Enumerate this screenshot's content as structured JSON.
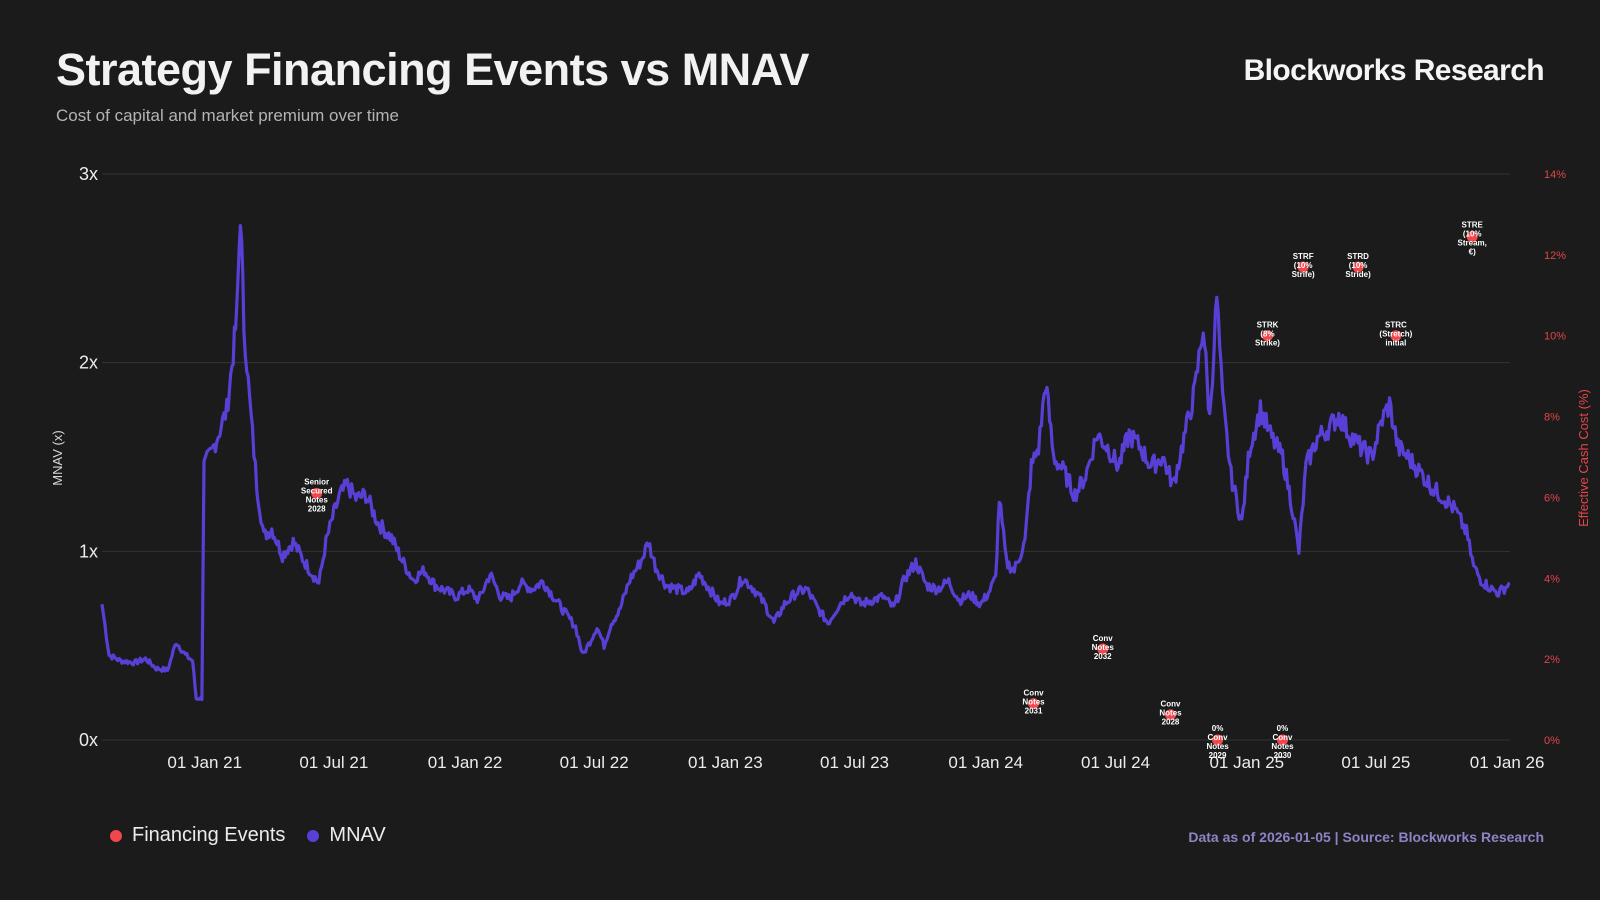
{
  "header": {
    "title": "Strategy Financing Events vs MNAV",
    "subtitle": "Cost of capital and market premium over time",
    "brand": "Blockworks Research"
  },
  "footer": {
    "source": "Data as of 2026-01-05 | Source: Blockworks Research"
  },
  "colors": {
    "background": "#1b1b1b",
    "mnav": "#5a3fd6",
    "events": "#f0474c",
    "grid": "#333333"
  },
  "chart_data": {
    "type": "line",
    "title": "Strategy Financing Events vs MNAV",
    "ylabel": "MNAV (x)",
    "y2label": "Effective Cash Cost (%)",
    "ylim": [
      0,
      3
    ],
    "y2lim": [
      0,
      14
    ],
    "xlim": [
      "2020-08-10",
      "2026-01-05"
    ],
    "y_ticks": [
      {
        "value": 0,
        "label": "0x"
      },
      {
        "value": 1,
        "label": "1x"
      },
      {
        "value": 2,
        "label": "2x"
      },
      {
        "value": 3,
        "label": "3x"
      }
    ],
    "y2_ticks": [
      {
        "value": 0,
        "label": "0%"
      },
      {
        "value": 2,
        "label": "2%"
      },
      {
        "value": 4,
        "label": "4%"
      },
      {
        "value": 6,
        "label": "6%"
      },
      {
        "value": 8,
        "label": "8%"
      },
      {
        "value": 10,
        "label": "10%"
      },
      {
        "value": 12,
        "label": "12%"
      },
      {
        "value": 14,
        "label": "14%"
      }
    ],
    "x_ticks": [
      {
        "date": "2021-01-01",
        "label": "01 Jan 21"
      },
      {
        "date": "2021-07-01",
        "label": "01 Jul 21"
      },
      {
        "date": "2022-01-01",
        "label": "01 Jan 22"
      },
      {
        "date": "2022-07-01",
        "label": "01 Jul 22"
      },
      {
        "date": "2023-01-01",
        "label": "01 Jan 23"
      },
      {
        "date": "2023-07-01",
        "label": "01 Jul 23"
      },
      {
        "date": "2024-01-01",
        "label": "01 Jan 24"
      },
      {
        "date": "2024-07-01",
        "label": "01 Jul 24"
      },
      {
        "date": "2025-01-01",
        "label": "01 Jan 25"
      },
      {
        "date": "2025-07-01",
        "label": "01 Jul 25"
      },
      {
        "date": "2026-01-01",
        "label": "01 Jan 26"
      }
    ],
    "legend": [
      {
        "name": "Financing Events",
        "color": "#f0474c"
      },
      {
        "name": "MNAV",
        "color": "#5a3fd6"
      }
    ],
    "series": [
      {
        "name": "MNAV",
        "points": [
          [
            "2020-08-10",
            0.72
          ],
          [
            "2020-08-20",
            0.45
          ],
          [
            "2020-09-05",
            0.42
          ],
          [
            "2020-09-25",
            0.41
          ],
          [
            "2020-10-10",
            0.43
          ],
          [
            "2020-10-25",
            0.38
          ],
          [
            "2020-11-10",
            0.37
          ],
          [
            "2020-11-22",
            0.52
          ],
          [
            "2020-12-05",
            0.45
          ],
          [
            "2020-12-15",
            0.42
          ],
          [
            "2020-12-20",
            0.22
          ],
          [
            "2020-12-28",
            0.22
          ],
          [
            "2020-12-31",
            1.45
          ],
          [
            "2021-01-10",
            1.52
          ],
          [
            "2021-01-20",
            1.62
          ],
          [
            "2021-02-01",
            1.75
          ],
          [
            "2021-02-10",
            2.05
          ],
          [
            "2021-02-15",
            2.25
          ],
          [
            "2021-02-20",
            2.8
          ],
          [
            "2021-02-25",
            2.2
          ],
          [
            "2021-03-05",
            1.8
          ],
          [
            "2021-03-15",
            1.35
          ],
          [
            "2021-03-25",
            1.08
          ],
          [
            "2021-04-05",
            1.12
          ],
          [
            "2021-04-20",
            0.98
          ],
          [
            "2021-05-05",
            1.05
          ],
          [
            "2021-05-20",
            0.95
          ],
          [
            "2021-06-01",
            0.88
          ],
          [
            "2021-06-10",
            0.83
          ],
          [
            "2021-06-20",
            1.05
          ],
          [
            "2021-07-01",
            1.2
          ],
          [
            "2021-07-10",
            1.3
          ],
          [
            "2021-07-20",
            1.35
          ],
          [
            "2021-08-01",
            1.28
          ],
          [
            "2021-08-15",
            1.3
          ],
          [
            "2021-09-01",
            1.15
          ],
          [
            "2021-09-20",
            1.07
          ],
          [
            "2021-10-05",
            0.95
          ],
          [
            "2021-10-20",
            0.85
          ],
          [
            "2021-11-05",
            0.9
          ],
          [
            "2021-11-20",
            0.82
          ],
          [
            "2021-12-05",
            0.79
          ],
          [
            "2021-12-20",
            0.76
          ],
          [
            "2022-01-05",
            0.8
          ],
          [
            "2022-01-20",
            0.74
          ],
          [
            "2022-02-05",
            0.88
          ],
          [
            "2022-02-20",
            0.76
          ],
          [
            "2022-03-05",
            0.75
          ],
          [
            "2022-03-20",
            0.83
          ],
          [
            "2022-04-05",
            0.8
          ],
          [
            "2022-04-20",
            0.84
          ],
          [
            "2022-05-05",
            0.76
          ],
          [
            "2022-05-20",
            0.68
          ],
          [
            "2022-06-05",
            0.6
          ],
          [
            "2022-06-15",
            0.45
          ],
          [
            "2022-06-25",
            0.52
          ],
          [
            "2022-07-05",
            0.6
          ],
          [
            "2022-07-15",
            0.5
          ],
          [
            "2022-07-25",
            0.62
          ],
          [
            "2022-08-05",
            0.68
          ],
          [
            "2022-08-20",
            0.85
          ],
          [
            "2022-09-05",
            0.95
          ],
          [
            "2022-09-15",
            1.05
          ],
          [
            "2022-09-25",
            0.92
          ],
          [
            "2022-10-10",
            0.82
          ],
          [
            "2022-10-25",
            0.8
          ],
          [
            "2022-11-10",
            0.78
          ],
          [
            "2022-11-25",
            0.88
          ],
          [
            "2022-12-10",
            0.8
          ],
          [
            "2022-12-25",
            0.72
          ],
          [
            "2023-01-10",
            0.75
          ],
          [
            "2023-01-25",
            0.86
          ],
          [
            "2023-02-10",
            0.8
          ],
          [
            "2023-02-25",
            0.72
          ],
          [
            "2023-03-10",
            0.62
          ],
          [
            "2023-03-25",
            0.72
          ],
          [
            "2023-04-10",
            0.78
          ],
          [
            "2023-04-25",
            0.8
          ],
          [
            "2023-05-10",
            0.7
          ],
          [
            "2023-05-25",
            0.62
          ],
          [
            "2023-06-10",
            0.72
          ],
          [
            "2023-06-25",
            0.78
          ],
          [
            "2023-07-10",
            0.72
          ],
          [
            "2023-07-25",
            0.74
          ],
          [
            "2023-08-10",
            0.76
          ],
          [
            "2023-08-25",
            0.7
          ],
          [
            "2023-09-10",
            0.86
          ],
          [
            "2023-09-25",
            0.94
          ],
          [
            "2023-10-10",
            0.82
          ],
          [
            "2023-10-25",
            0.8
          ],
          [
            "2023-11-10",
            0.84
          ],
          [
            "2023-11-25",
            0.74
          ],
          [
            "2023-12-10",
            0.77
          ],
          [
            "2023-12-25",
            0.72
          ],
          [
            "2024-01-05",
            0.78
          ],
          [
            "2024-01-15",
            0.86
          ],
          [
            "2024-01-20",
            1.28
          ],
          [
            "2024-01-30",
            0.94
          ],
          [
            "2024-02-10",
            0.9
          ],
          [
            "2024-02-25",
            1.05
          ],
          [
            "2024-03-05",
            1.45
          ],
          [
            "2024-03-15",
            1.55
          ],
          [
            "2024-03-25",
            1.9
          ],
          [
            "2024-04-05",
            1.5
          ],
          [
            "2024-04-20",
            1.42
          ],
          [
            "2024-05-05",
            1.3
          ],
          [
            "2024-05-20",
            1.4
          ],
          [
            "2024-06-05",
            1.62
          ],
          [
            "2024-06-20",
            1.55
          ],
          [
            "2024-07-05",
            1.45
          ],
          [
            "2024-07-20",
            1.62
          ],
          [
            "2024-08-05",
            1.55
          ],
          [
            "2024-08-20",
            1.45
          ],
          [
            "2024-09-05",
            1.5
          ],
          [
            "2024-09-20",
            1.35
          ],
          [
            "2024-10-05",
            1.6
          ],
          [
            "2024-10-20",
            1.85
          ],
          [
            "2024-11-01",
            2.2
          ],
          [
            "2024-11-10",
            1.7
          ],
          [
            "2024-11-20",
            2.35
          ],
          [
            "2024-11-28",
            1.8
          ],
          [
            "2024-12-10",
            1.4
          ],
          [
            "2024-12-25",
            1.15
          ],
          [
            "2025-01-05",
            1.55
          ],
          [
            "2025-01-20",
            1.75
          ],
          [
            "2025-02-05",
            1.6
          ],
          [
            "2025-02-20",
            1.5
          ],
          [
            "2025-03-05",
            1.25
          ],
          [
            "2025-03-15",
            1.0
          ],
          [
            "2025-03-25",
            1.45
          ],
          [
            "2025-04-10",
            1.6
          ],
          [
            "2025-04-25",
            1.65
          ],
          [
            "2025-05-10",
            1.72
          ],
          [
            "2025-05-25",
            1.62
          ],
          [
            "2025-06-10",
            1.55
          ],
          [
            "2025-06-25",
            1.5
          ],
          [
            "2025-07-10",
            1.7
          ],
          [
            "2025-07-20",
            1.78
          ],
          [
            "2025-08-01",
            1.55
          ],
          [
            "2025-08-15",
            1.5
          ],
          [
            "2025-09-01",
            1.42
          ],
          [
            "2025-09-20",
            1.33
          ],
          [
            "2025-10-05",
            1.28
          ],
          [
            "2025-10-20",
            1.22
          ],
          [
            "2025-11-05",
            1.1
          ],
          [
            "2025-11-15",
            0.92
          ],
          [
            "2025-11-25",
            0.85
          ],
          [
            "2025-12-10",
            0.8
          ],
          [
            "2025-12-20",
            0.78
          ],
          [
            "2026-01-05",
            0.83
          ]
        ]
      },
      {
        "name": "Financing Events",
        "points": [
          {
            "date": "2021-06-07",
            "value": 6.1,
            "label": "Senior Secured Notes 2028",
            "lines": [
              "Senior",
              "Secured",
              "Notes",
              "2028"
            ]
          },
          {
            "date": "2024-03-08",
            "value": 0.9,
            "label": "Conv Notes 2031",
            "lines": [
              "Conv",
              "Notes",
              "2031"
            ]
          },
          {
            "date": "2024-06-13",
            "value": 2.25,
            "label": "Conv Notes 2032",
            "lines": [
              "Conv",
              "Notes",
              "2032"
            ]
          },
          {
            "date": "2024-09-16",
            "value": 0.625,
            "label": "Conv Notes 2028",
            "lines": [
              "Conv",
              "Notes",
              "2028"
            ]
          },
          {
            "date": "2024-11-21",
            "value": 0,
            "label": "0% Conv Notes 2029",
            "lines": [
              "0%",
              "Conv",
              "Notes",
              "2029"
            ]
          },
          {
            "date": "2025-02-20",
            "value": 0,
            "label": "0% Conv Notes 2030",
            "lines": [
              "0%",
              "Conv",
              "Notes",
              "2030"
            ]
          },
          {
            "date": "2025-01-30",
            "value": 10,
            "label": "STRK (8% Strike)",
            "lines": [
              "STRK",
              "(8%",
              "Strike)"
            ]
          },
          {
            "date": "2025-03-21",
            "value": 11.7,
            "label": "STRF (10% Strife)",
            "lines": [
              "STRF",
              "(10%",
              "Strife)"
            ]
          },
          {
            "date": "2025-06-06",
            "value": 11.7,
            "label": "STRD (10% Stride)",
            "lines": [
              "STRD",
              "(10%",
              "Stride)"
            ]
          },
          {
            "date": "2025-07-29",
            "value": 10,
            "label": "STRC (Stretch) initial",
            "lines": [
              "STRC",
              "(Stretch)",
              "initial"
            ]
          },
          {
            "date": "2025-11-13",
            "value": 12.45,
            "label": "STRE (10% Stream, €)",
            "lines": [
              "STRE",
              "(10%",
              "Stream,",
              "€)"
            ]
          }
        ]
      }
    ]
  }
}
